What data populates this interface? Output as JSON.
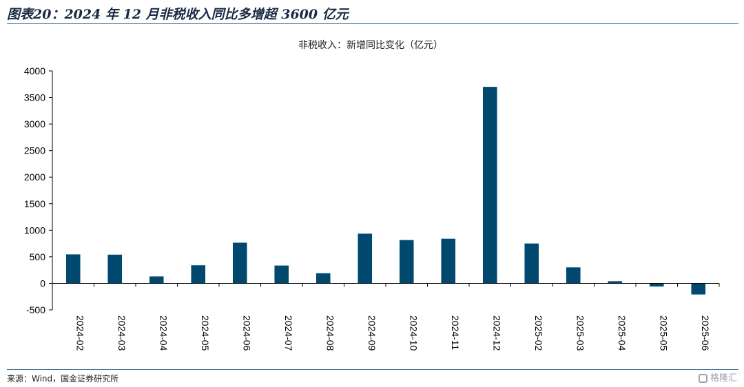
{
  "figure_title": "图表20：2024 年 12 月非税收入同比多增超 3600 亿元",
  "source_note": "来源：Wind，国金证券研究所",
  "watermark": "格隆汇",
  "colors": {
    "bar": "#00486e",
    "axis": "#000000",
    "rule": "#3a6a8e"
  },
  "chart_data": {
    "type": "bar",
    "title": "非税收入：新增同比变化（亿元）",
    "xlabel": "",
    "ylabel": "",
    "ylim": [
      -500,
      4000
    ],
    "yticks": [
      -500,
      0,
      500,
      1000,
      1500,
      2000,
      2500,
      3000,
      3500,
      4000
    ],
    "grid": false,
    "categories": [
      "2024-02",
      "2024-03",
      "2024-04",
      "2024-05",
      "2024-06",
      "2024-07",
      "2024-08",
      "2024-09",
      "2024-10",
      "2024-11",
      "2024-12",
      "2025-02",
      "2025-03",
      "2025-04",
      "2025-05",
      "2025-06"
    ],
    "values": [
      545,
      540,
      130,
      340,
      765,
      335,
      190,
      935,
      815,
      840,
      3700,
      750,
      300,
      40,
      -60,
      -210
    ]
  }
}
